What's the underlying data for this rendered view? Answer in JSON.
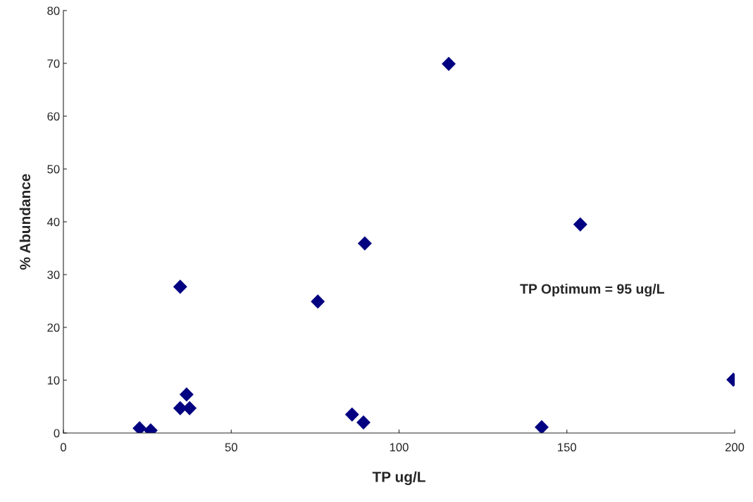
{
  "chart_data": {
    "type": "scatter",
    "xlabel": "TP ug/L",
    "ylabel": "% Abundance",
    "x": [
      22.7,
      26.0,
      34.8,
      34.8,
      37.6,
      36.7,
      75.8,
      86.0,
      89.4,
      89.8,
      114.8,
      142.5,
      154.0,
      199.6
    ],
    "series": [
      {
        "color": "#000080",
        "values": [
          0.9,
          0.5,
          27.7,
          4.7,
          4.7,
          7.3,
          24.9,
          3.5,
          2.0,
          35.9,
          69.9,
          1.1,
          39.5,
          10.1
        ]
      }
    ],
    "xlim": [
      0,
      200
    ],
    "xticks": [
      0,
      50,
      100,
      150,
      200
    ],
    "ylim": [
      0,
      80
    ],
    "yticks": [
      0,
      10,
      20,
      30,
      40,
      50,
      60,
      70,
      80
    ],
    "marker": "diamond",
    "grid": false,
    "legend": false,
    "annotations": [
      "TP Optimum = 95 ug/L"
    ]
  }
}
